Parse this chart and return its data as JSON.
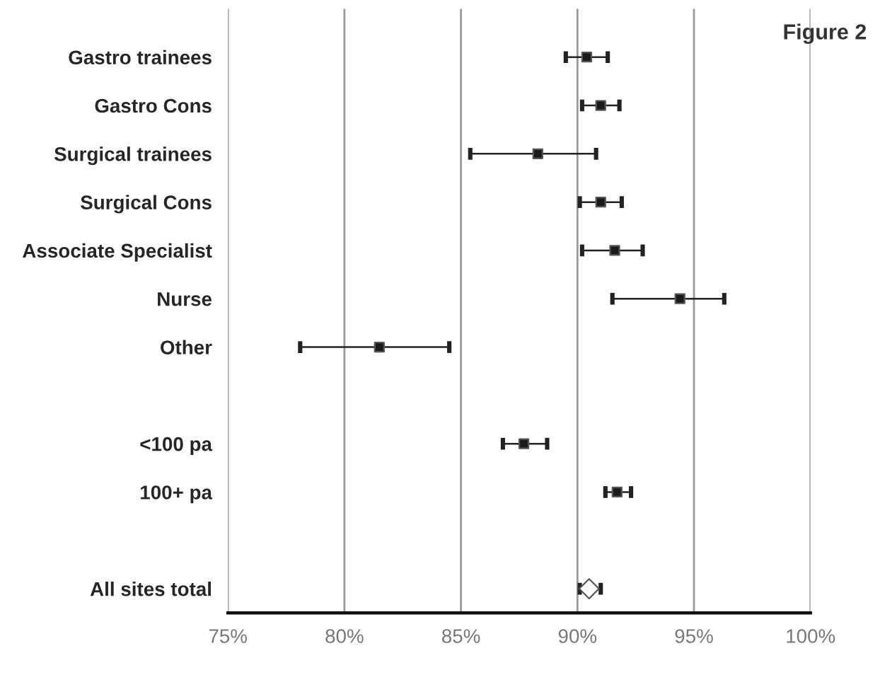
{
  "chart_data": {
    "type": "scatter",
    "orientation": "horizontal",
    "categories": [
      "Gastro trainees",
      "Gastro Cons",
      "Surgical trainees",
      "Surgical Cons",
      "Associate Specialist",
      "Nurse",
      "Other",
      null,
      "<100 pa",
      "100+ pa",
      null,
      "All sites total"
    ],
    "series": [
      {
        "color": "#1a1a1a",
        "marker": "square",
        "values": [
          90.4,
          91.0,
          88.3,
          91.0,
          91.6,
          94.4,
          81.5,
          null,
          87.7,
          91.7,
          null,
          null
        ],
        "errors": [
          [
            89.5,
            91.3
          ],
          [
            90.2,
            91.8
          ],
          [
            85.4,
            90.8
          ],
          [
            90.1,
            91.9
          ],
          [
            90.2,
            92.8
          ],
          [
            91.5,
            96.3
          ],
          [
            78.1,
            84.5
          ],
          null,
          [
            86.8,
            88.7
          ],
          [
            91.2,
            92.3
          ],
          null,
          null
        ]
      },
      {
        "color": "#ffffff",
        "marker": "diamond",
        "values": [
          null,
          null,
          null,
          null,
          null,
          null,
          null,
          null,
          null,
          null,
          null,
          90.5
        ],
        "errors": [
          null,
          null,
          null,
          null,
          null,
          null,
          null,
          null,
          null,
          null,
          null,
          [
            90.1,
            91.0
          ]
        ]
      }
    ],
    "xlim": [
      75,
      100
    ],
    "xticks": [
      {
        "value": 75,
        "label": "75%"
      },
      {
        "value": 80,
        "label": "80%"
      },
      {
        "value": 85,
        "label": "85%"
      },
      {
        "value": 90,
        "label": "90%"
      },
      {
        "value": 95,
        "label": "95%"
      },
      {
        "value": 100,
        "label": "100%"
      }
    ],
    "grid": "x",
    "annotations": [
      "Figure 2"
    ]
  }
}
